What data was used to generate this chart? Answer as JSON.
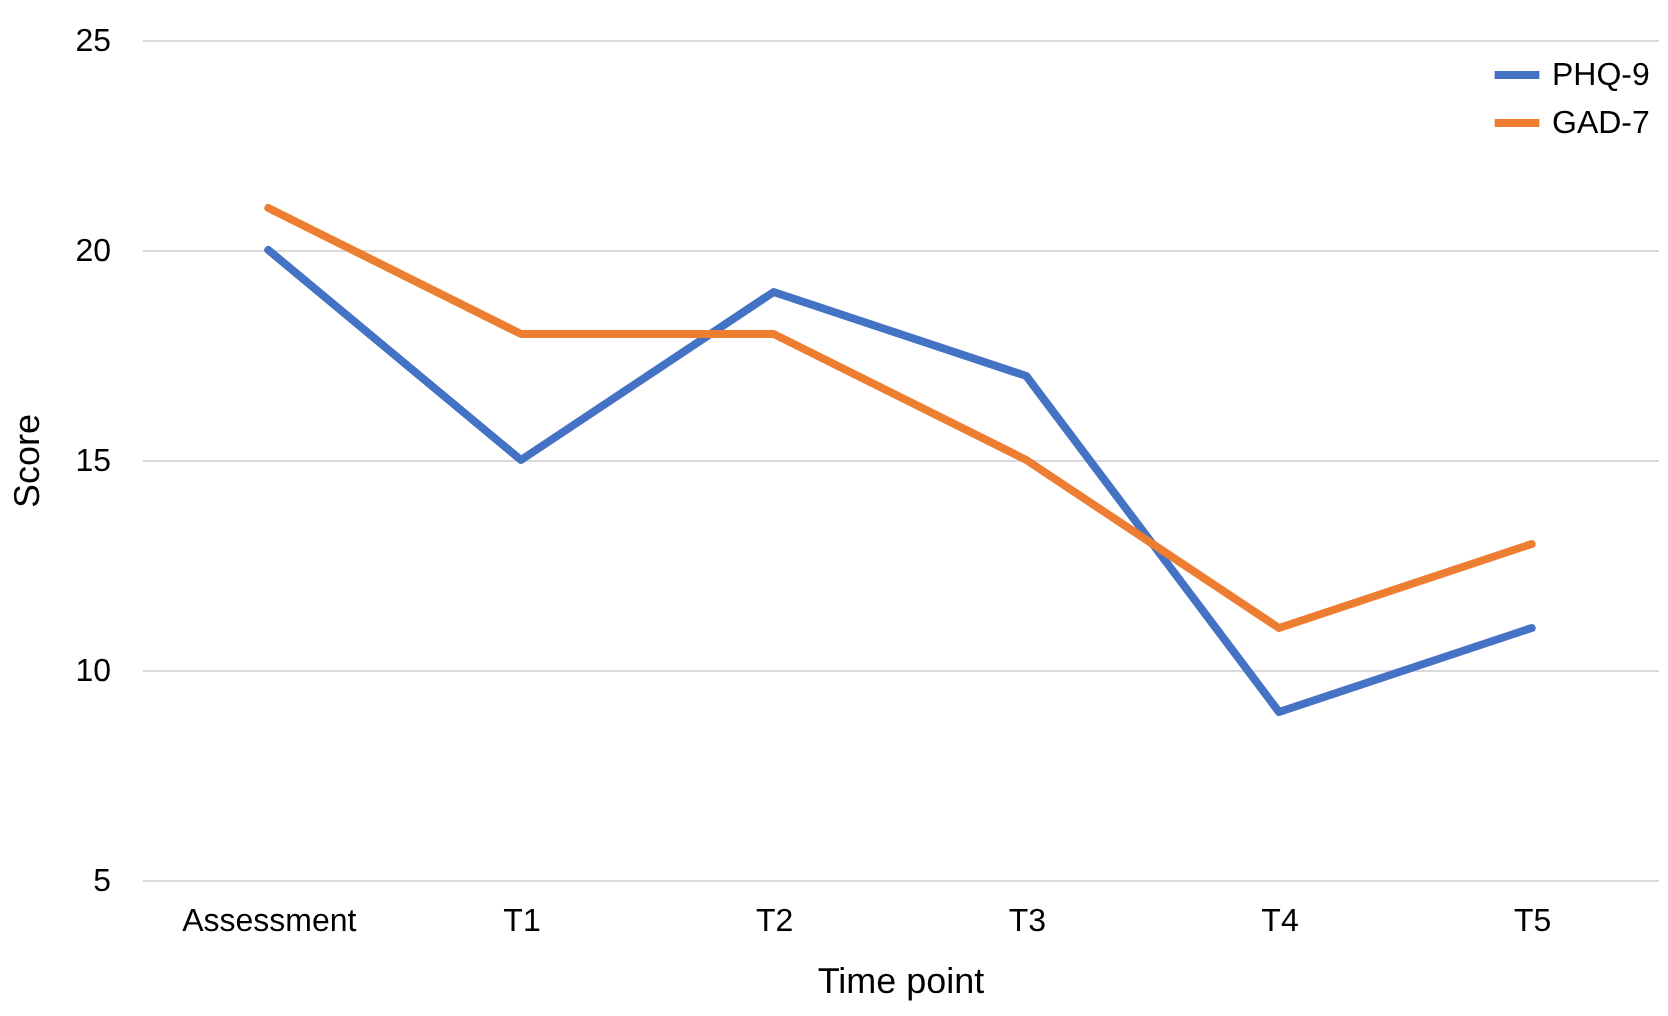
{
  "chart_data": {
    "type": "line",
    "xlabel": "Time point",
    "ylabel": "Score",
    "categories": [
      "Assessment",
      "T1",
      "T2",
      "T3",
      "T4",
      "T5"
    ],
    "series": [
      {
        "name": "PHQ-9",
        "color": "#4472c4",
        "values": [
          20,
          15,
          19,
          17,
          9,
          11
        ]
      },
      {
        "name": "GAD-7",
        "color": "#ed7d31",
        "values": [
          21,
          18,
          18,
          15,
          11,
          13
        ]
      }
    ],
    "ylim": [
      5,
      25
    ],
    "yticks": [
      5,
      10,
      15,
      20,
      25
    ],
    "grid": "y",
    "legend": "top right",
    "line_style": "solid"
  }
}
